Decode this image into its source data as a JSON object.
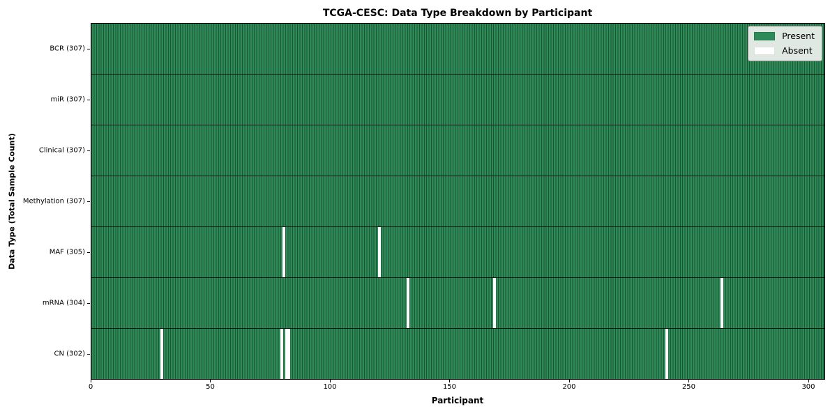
{
  "chart_data": {
    "type": "heatmap",
    "title": "TCGA-CESC: Data Type Breakdown by Participant",
    "xlabel": "Participant",
    "ylabel": "Data Type (Total Sample Count)",
    "n_participants": 307,
    "x_ticks": [
      0,
      50,
      100,
      150,
      200,
      250,
      300
    ],
    "legend": {
      "position": "upper right",
      "entries": [
        {
          "label": "Present",
          "color": "#2e8b57"
        },
        {
          "label": "Absent",
          "color": "#ffffff"
        }
      ]
    },
    "colors": {
      "present": "#2e8b57",
      "absent": "#ffffff",
      "cell_gridline": "rgba(0,0,0,0.40)",
      "row_divider": "rgba(0,0,0,0.80)",
      "background": "#ffffff"
    },
    "rows": [
      {
        "label": "BCR (307)",
        "data_type": "BCR",
        "total": 307,
        "absent_participants": []
      },
      {
        "label": "miR (307)",
        "data_type": "miR",
        "total": 307,
        "absent_participants": []
      },
      {
        "label": "Clinical (307)",
        "data_type": "Clinical",
        "total": 307,
        "absent_participants": []
      },
      {
        "label": "Methylation (307)",
        "data_type": "Methylation",
        "total": 307,
        "absent_participants": []
      },
      {
        "label": "MAF (305)",
        "data_type": "MAF",
        "total": 305,
        "absent_participants": [
          80,
          120
        ]
      },
      {
        "label": "mRNA (304)",
        "data_type": "mRNA",
        "total": 304,
        "absent_participants": [
          132,
          168,
          263
        ]
      },
      {
        "label": "CN (302)",
        "data_type": "CN",
        "total": 302,
        "absent_participants": [
          29,
          79,
          81,
          82,
          240
        ]
      }
    ]
  }
}
